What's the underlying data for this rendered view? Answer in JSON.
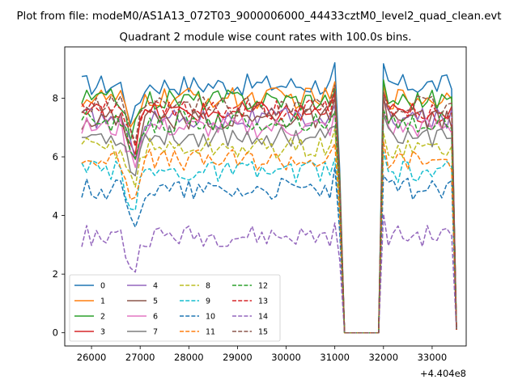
{
  "figure": {
    "suptitle": "Plot from file: modeM0/AS1A13_072T03_9000006000_44433cztM0_level2_quad_clean.evt"
  },
  "chart_data": {
    "type": "line",
    "title": "Quadrant 2 module wise count rates with 100.0s bins.",
    "xlabel": "",
    "ylabel": "",
    "x_offset_label": "+4.404e8",
    "xlim": [
      25450,
      33700
    ],
    "ylim": [
      -0.45,
      9.75
    ],
    "x_ticks": [
      26000,
      27000,
      28000,
      29000,
      30000,
      31000,
      32000,
      33000
    ],
    "y_ticks": [
      0,
      2,
      4,
      6,
      8
    ],
    "grid": false,
    "legend": {
      "placement": "lower-left",
      "columns": 4
    },
    "series": [
      {
        "name": "0",
        "color": "#1f77b4",
        "dash": "solid",
        "base": 8.45
      },
      {
        "name": "1",
        "color": "#ff7f0e",
        "dash": "solid",
        "base": 8.0
      },
      {
        "name": "2",
        "color": "#2ca02c",
        "dash": "solid",
        "base": 7.95
      },
      {
        "name": "3",
        "color": "#d62728",
        "dash": "solid",
        "base": 7.5
      },
      {
        "name": "4",
        "color": "#9467bd",
        "dash": "solid",
        "base": 7.3
      },
      {
        "name": "5",
        "color": "#8c564b",
        "dash": "solid",
        "base": 7.3
      },
      {
        "name": "6",
        "color": "#e377c2",
        "dash": "solid",
        "base": 7.0
      },
      {
        "name": "7",
        "color": "#7f7f7f",
        "dash": "solid",
        "base": 6.7
      },
      {
        "name": "8",
        "color": "#bcbd22",
        "dash": "dashed",
        "base": 6.3
      },
      {
        "name": "9",
        "color": "#17becf",
        "dash": "dashed",
        "base": 5.5
      },
      {
        "name": "10",
        "color": "#1f77b4",
        "dash": "dashed",
        "base": 4.9
      },
      {
        "name": "11",
        "color": "#ff7f0e",
        "dash": "dashed",
        "base": 5.9
      },
      {
        "name": "12",
        "color": "#2ca02c",
        "dash": "dashed",
        "base": 7.2
      },
      {
        "name": "13",
        "color": "#d62728",
        "dash": "dashed",
        "base": 7.6
      },
      {
        "name": "14",
        "color": "#9467bd",
        "dash": "dashed",
        "base": 3.3
      },
      {
        "name": "15",
        "color": "#8c564b",
        "dash": "dashed",
        "base": 7.7
      }
    ]
  }
}
